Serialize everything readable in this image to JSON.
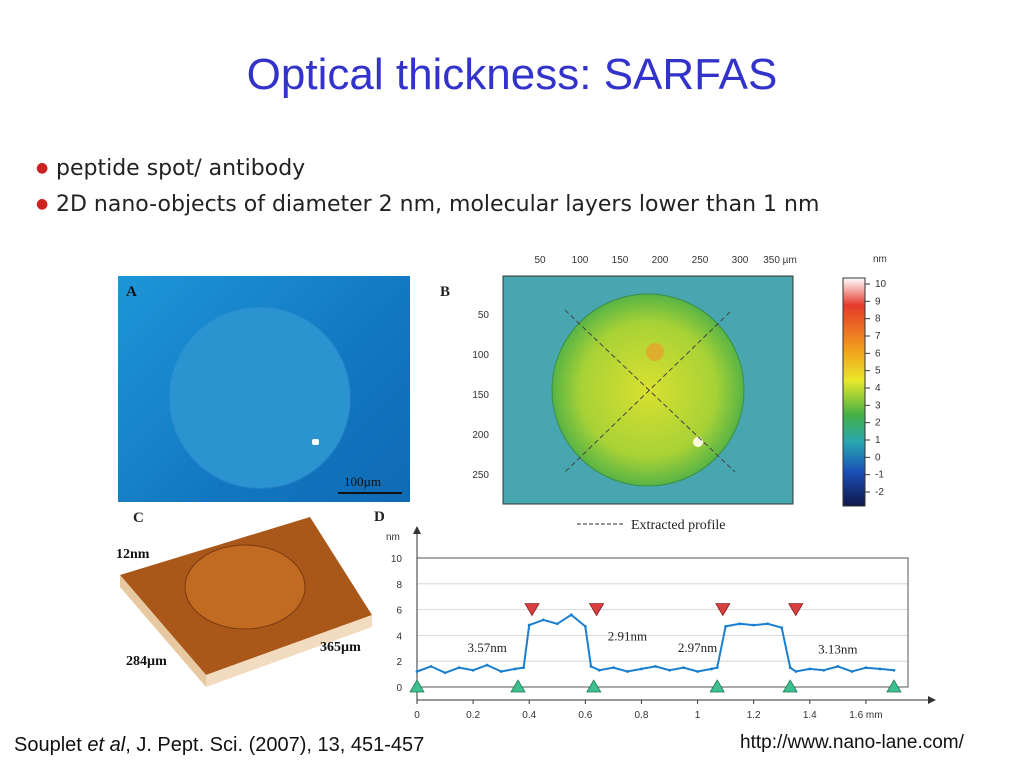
{
  "slide": {
    "title": "Optical thickness: SARFAS",
    "bullets": [
      "peptide spot/ antibody",
      "2D nano-objects of diameter 2 nm,  molecular layers lower than 1 nm"
    ],
    "citation": {
      "author": "Souplet ",
      "etal": "et al",
      "rest": ", J. Pept. Sci. (2007), 13, 451-457"
    },
    "url": "http://www.nano-lane.com/"
  },
  "panels": {
    "a": {
      "label": "A",
      "scalebar": "100µm"
    },
    "b": {
      "label": "B",
      "x_ticks": [
        "50",
        "100",
        "150",
        "200",
        "250",
        "300",
        "350 µm"
      ],
      "y_ticks": [
        "50",
        "100",
        "150",
        "200",
        "250"
      ],
      "colorbar_unit": "nm",
      "colorbar_ticks": [
        "10",
        "9",
        "8",
        "7",
        "6",
        "5",
        "4",
        "3",
        "2",
        "1",
        "0",
        "-1",
        "-2"
      ],
      "legend": "Extracted profile"
    },
    "c": {
      "label": "C",
      "z_label": "12nm",
      "x_label": "284µm",
      "y_label": "365µm"
    },
    "d": {
      "label": "D",
      "y_unit": "nm"
    }
  },
  "chart_data": {
    "type": "line",
    "x_ticks": [
      "0",
      "0.2",
      "0.4",
      "0.6",
      "0.8",
      "1",
      "1.2",
      "1.4",
      "1.6 mm"
    ],
    "y_ticks": [
      "0",
      "2",
      "4",
      "6",
      "8",
      "10"
    ],
    "xlim": [
      0,
      1.75
    ],
    "ylim": [
      0,
      10
    ],
    "x": [
      0,
      0.05,
      0.1,
      0.15,
      0.2,
      0.25,
      0.3,
      0.35,
      0.38,
      0.4,
      0.45,
      0.5,
      0.55,
      0.6,
      0.62,
      0.65,
      0.7,
      0.75,
      0.8,
      0.85,
      0.9,
      0.95,
      1.0,
      1.05,
      1.07,
      1.1,
      1.15,
      1.2,
      1.25,
      1.3,
      1.33,
      1.35,
      1.4,
      1.45,
      1.5,
      1.55,
      1.6,
      1.65,
      1.7
    ],
    "y": [
      1.2,
      1.6,
      1.1,
      1.5,
      1.3,
      1.7,
      1.2,
      1.4,
      1.5,
      4.8,
      5.2,
      4.9,
      5.6,
      4.7,
      1.6,
      1.3,
      1.5,
      1.2,
      1.4,
      1.6,
      1.3,
      1.5,
      1.2,
      1.4,
      1.5,
      4.7,
      4.9,
      4.8,
      4.9,
      4.6,
      1.5,
      1.2,
      1.4,
      1.3,
      1.6,
      1.2,
      1.5,
      1.4,
      1.3
    ],
    "annotations": [
      {
        "text": "3.57nm",
        "x": 0.25,
        "y": 2.7
      },
      {
        "text": "2.91nm",
        "x": 0.75,
        "y": 3.6
      },
      {
        "text": "2.97nm",
        "x": 1.0,
        "y": 2.7
      },
      {
        "text": "3.13nm",
        "x": 1.5,
        "y": 2.6
      }
    ],
    "up_markers": [
      0.0,
      0.36,
      0.63,
      1.07,
      1.33,
      1.7
    ],
    "down_markers": [
      0.41,
      0.64,
      1.09,
      1.35
    ]
  }
}
